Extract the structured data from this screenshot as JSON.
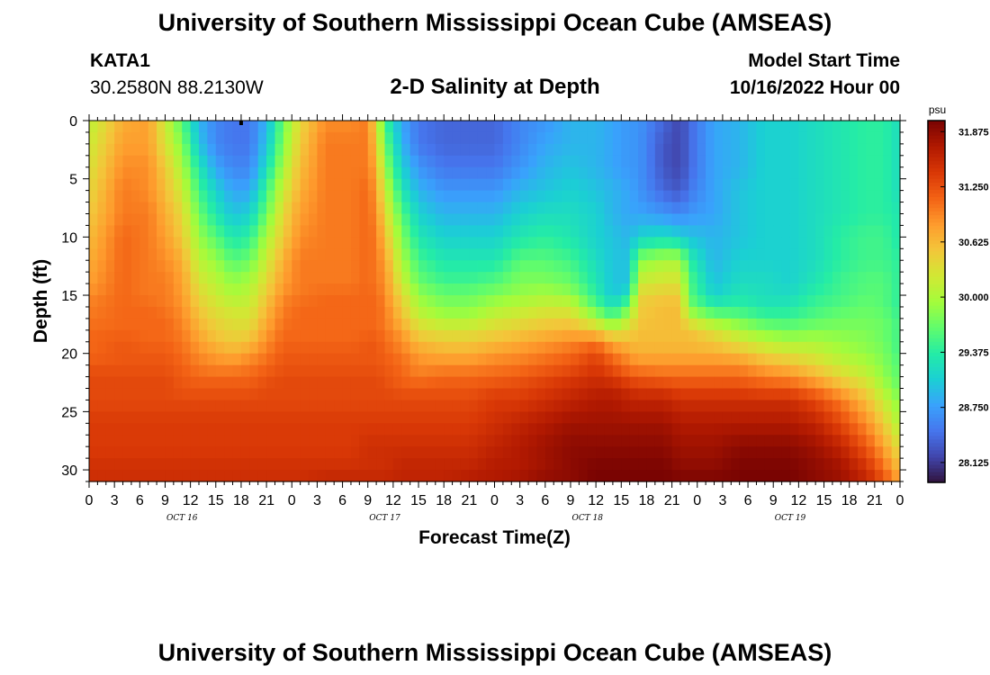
{
  "header": {
    "title": "University of Southern Mississippi Ocean Cube (AMSEAS)",
    "station": "KATA1",
    "coords": "30.2580N  88.2130W",
    "subtitle": "2-D Salinity at Depth",
    "model_start_label": "Model Start Time",
    "model_start_value": "10/16/2022 Hour 00"
  },
  "footer": {
    "title": "University of Southern Mississippi Ocean Cube (AMSEAS)"
  },
  "chart_data": {
    "type": "heatmap",
    "title": "2-D Salinity at Depth",
    "xlabel": "Forecast Time(Z)",
    "ylabel": "Depth (ft)",
    "x_unit": "hours from model start",
    "xlim": [
      0,
      96
    ],
    "ylim": [
      31,
      0
    ],
    "x_ticks": [
      0,
      3,
      6,
      9,
      12,
      15,
      18,
      21,
      24,
      27,
      30,
      33,
      36,
      39,
      42,
      45,
      48,
      51,
      54,
      57,
      60,
      63,
      66,
      69,
      72,
      75,
      78,
      81,
      84,
      87,
      90,
      93,
      96
    ],
    "x_tick_labels": [
      "0",
      "3",
      "6",
      "9",
      "12",
      "15",
      "18",
      "21",
      "0",
      "3",
      "6",
      "9",
      "12",
      "15",
      "18",
      "21",
      "0",
      "3",
      "6",
      "9",
      "12",
      "15",
      "18",
      "21",
      "0",
      "3",
      "6",
      "9",
      "12",
      "15",
      "18",
      "21",
      "0"
    ],
    "date_labels": [
      {
        "label": "OCT 16",
        "hour": 11
      },
      {
        "label": "OCT 17",
        "hour": 35
      },
      {
        "label": "OCT 18",
        "hour": 59
      },
      {
        "label": "OCT 19",
        "hour": 83
      }
    ],
    "y_ticks": [
      0,
      5,
      10,
      15,
      20,
      25,
      30
    ],
    "colorbar": {
      "unit": "psu",
      "min": 27.9,
      "max": 32.0,
      "tick_values": [
        28.125,
        28.75,
        29.375,
        30.0,
        30.625,
        31.25,
        31.875
      ],
      "tick_labels": [
        "28.125",
        "28.750",
        "29.375",
        "30.000",
        "30.625",
        "31.250",
        "31.875"
      ],
      "colormap": [
        "#30123b",
        "#4145ab",
        "#4675ed",
        "#39a2fc",
        "#1bcfd4",
        "#24eca6",
        "#61fc6c",
        "#a4fc3b",
        "#d1e834",
        "#f3c63a",
        "#fe9b2d",
        "#f36315",
        "#d93806",
        "#b11901",
        "#7a0402"
      ]
    },
    "grid_depths_ft": [
      0,
      2,
      4,
      6,
      8,
      10,
      12,
      14,
      15,
      16,
      17,
      18,
      19,
      20,
      21,
      22,
      23,
      24,
      26,
      28,
      30,
      31
    ],
    "time_columns": [
      {
        "hour": 0,
        "profile": [
          30.1,
          30.2,
          30.3,
          30.4,
          30.5,
          30.6,
          30.7,
          30.8,
          30.9,
          31.0,
          31.0,
          31.1,
          31.1,
          31.1,
          31.2,
          31.3,
          31.3,
          31.3,
          31.4,
          31.4,
          31.5,
          31.5
        ]
      },
      {
        "hour": 4,
        "profile": [
          30.7,
          30.8,
          30.9,
          31.0,
          31.0,
          31.1,
          31.1,
          31.1,
          31.1,
          31.1,
          31.1,
          31.1,
          31.2,
          31.2,
          31.2,
          31.3,
          31.3,
          31.3,
          31.4,
          31.4,
          31.5,
          31.5
        ]
      },
      {
        "hour": 7,
        "profile": [
          30.8,
          30.8,
          30.9,
          30.9,
          31.0,
          31.0,
          31.0,
          31.0,
          31.0,
          31.1,
          31.1,
          31.1,
          31.1,
          31.2,
          31.2,
          31.3,
          31.3,
          31.3,
          31.4,
          31.4,
          31.5,
          31.5
        ]
      },
      {
        "hour": 9,
        "profile": [
          30.2,
          30.3,
          30.5,
          30.6,
          30.7,
          30.8,
          30.9,
          31.0,
          31.0,
          31.0,
          31.1,
          31.1,
          31.1,
          31.2,
          31.2,
          31.3,
          31.3,
          31.3,
          31.4,
          31.4,
          31.5,
          31.5
        ]
      },
      {
        "hour": 11,
        "profile": [
          29.6,
          29.8,
          30.0,
          30.2,
          30.4,
          30.5,
          30.7,
          30.8,
          30.8,
          30.9,
          30.9,
          31.0,
          31.0,
          31.1,
          31.1,
          31.2,
          31.2,
          31.3,
          31.4,
          31.4,
          31.5,
          31.5
        ]
      },
      {
        "hour": 13,
        "profile": [
          28.9,
          29.0,
          29.3,
          29.5,
          29.7,
          29.9,
          30.1,
          30.3,
          30.4,
          30.5,
          30.6,
          30.7,
          30.8,
          30.9,
          31.0,
          31.1,
          31.2,
          31.3,
          31.4,
          31.4,
          31.5,
          31.5
        ]
      },
      {
        "hour": 15,
        "profile": [
          28.6,
          28.6,
          28.8,
          29.1,
          29.3,
          29.6,
          29.9,
          30.1,
          30.2,
          30.3,
          30.4,
          30.5,
          30.6,
          30.8,
          30.9,
          31.1,
          31.2,
          31.3,
          31.4,
          31.4,
          31.5,
          31.5
        ]
      },
      {
        "hour": 17,
        "profile": [
          28.5,
          28.5,
          28.6,
          28.8,
          29.0,
          29.3,
          29.6,
          29.9,
          30.0,
          30.2,
          30.3,
          30.4,
          30.5,
          30.7,
          30.9,
          31.1,
          31.2,
          31.3,
          31.4,
          31.4,
          31.5,
          31.5
        ]
      },
      {
        "hour": 19,
        "profile": [
          28.5,
          28.5,
          28.6,
          28.8,
          29.1,
          29.4,
          29.7,
          30.0,
          30.1,
          30.2,
          30.3,
          30.4,
          30.6,
          30.8,
          31.0,
          31.1,
          31.2,
          31.3,
          31.4,
          31.4,
          31.5,
          31.5
        ]
      },
      {
        "hour": 21,
        "profile": [
          28.9,
          29.0,
          29.2,
          29.5,
          29.7,
          30.0,
          30.2,
          30.4,
          30.5,
          30.6,
          30.7,
          30.8,
          30.9,
          31.0,
          31.1,
          31.2,
          31.3,
          31.3,
          31.4,
          31.4,
          31.5,
          31.5
        ]
      },
      {
        "hour": 23,
        "profile": [
          29.7,
          29.8,
          30.0,
          30.2,
          30.4,
          30.5,
          30.7,
          30.8,
          30.9,
          31.0,
          31.0,
          31.1,
          31.1,
          31.2,
          31.2,
          31.3,
          31.3,
          31.3,
          31.4,
          31.4,
          31.5,
          31.5
        ]
      },
      {
        "hour": 25,
        "profile": [
          30.4,
          30.5,
          30.6,
          30.7,
          30.8,
          30.9,
          31.0,
          31.0,
          31.0,
          31.1,
          31.1,
          31.1,
          31.1,
          31.2,
          31.2,
          31.3,
          31.3,
          31.3,
          31.4,
          31.4,
          31.5,
          31.5
        ]
      },
      {
        "hour": 28,
        "profile": [
          30.9,
          31.0,
          31.0,
          31.0,
          31.0,
          31.0,
          31.0,
          31.0,
          31.1,
          31.1,
          31.1,
          31.1,
          31.1,
          31.2,
          31.2,
          31.3,
          31.3,
          31.3,
          31.4,
          31.4,
          31.5,
          31.6
        ]
      },
      {
        "hour": 31,
        "profile": [
          30.9,
          31.0,
          31.0,
          31.0,
          31.0,
          31.0,
          31.0,
          31.0,
          31.1,
          31.1,
          31.1,
          31.1,
          31.1,
          31.2,
          31.2,
          31.3,
          31.3,
          31.3,
          31.4,
          31.4,
          31.5,
          31.6
        ]
      },
      {
        "hour": 33,
        "profile": [
          31.0,
          31.0,
          31.0,
          31.1,
          31.1,
          31.1,
          31.1,
          31.1,
          31.1,
          31.1,
          31.1,
          31.1,
          31.2,
          31.2,
          31.2,
          31.3,
          31.3,
          31.3,
          31.4,
          31.5,
          31.5,
          31.6
        ]
      },
      {
        "hour": 34,
        "profile": [
          30.3,
          30.5,
          30.7,
          30.8,
          30.9,
          31.0,
          31.0,
          31.0,
          31.1,
          31.1,
          31.1,
          31.1,
          31.2,
          31.2,
          31.2,
          31.3,
          31.3,
          31.3,
          31.4,
          31.5,
          31.5,
          31.6
        ]
      },
      {
        "hour": 35,
        "profile": [
          29.5,
          29.7,
          29.9,
          30.2,
          30.4,
          30.6,
          30.8,
          30.9,
          30.9,
          31.0,
          31.0,
          31.0,
          31.1,
          31.1,
          31.2,
          31.2,
          31.3,
          31.3,
          31.4,
          31.5,
          31.5,
          31.6
        ]
      },
      {
        "hour": 37,
        "profile": [
          28.8,
          28.9,
          29.1,
          29.3,
          29.6,
          29.8,
          30.0,
          30.2,
          30.4,
          30.5,
          30.6,
          30.8,
          30.9,
          31.0,
          31.1,
          31.1,
          31.2,
          31.3,
          31.4,
          31.5,
          31.6,
          31.6
        ]
      },
      {
        "hour": 39,
        "profile": [
          28.5,
          28.5,
          28.7,
          28.9,
          29.1,
          29.3,
          29.5,
          29.7,
          29.9,
          30.0,
          30.2,
          30.4,
          30.6,
          30.8,
          30.9,
          31.0,
          31.2,
          31.3,
          31.4,
          31.5,
          31.6,
          31.6
        ]
      },
      {
        "hour": 42,
        "profile": [
          28.4,
          28.4,
          28.5,
          28.7,
          28.9,
          29.1,
          29.3,
          29.5,
          29.7,
          29.8,
          30.0,
          30.3,
          30.5,
          30.7,
          30.9,
          31.1,
          31.2,
          31.3,
          31.4,
          31.5,
          31.6,
          31.6
        ]
      },
      {
        "hour": 45,
        "profile": [
          28.4,
          28.4,
          28.5,
          28.7,
          28.9,
          29.1,
          29.3,
          29.5,
          29.7,
          29.8,
          30.0,
          30.3,
          30.5,
          30.7,
          30.9,
          31.1,
          31.2,
          31.3,
          31.4,
          31.5,
          31.6,
          31.7
        ]
      },
      {
        "hour": 48,
        "profile": [
          28.4,
          28.4,
          28.5,
          28.7,
          28.9,
          29.1,
          29.3,
          29.6,
          29.8,
          30.0,
          30.2,
          30.4,
          30.6,
          30.8,
          31.0,
          31.1,
          31.3,
          31.4,
          31.5,
          31.6,
          31.7,
          31.7
        ]
      },
      {
        "hour": 51,
        "profile": [
          28.6,
          28.6,
          28.7,
          28.9,
          29.1,
          29.3,
          29.6,
          29.8,
          29.9,
          30.1,
          30.3,
          30.5,
          30.7,
          30.9,
          31.0,
          31.2,
          31.3,
          31.4,
          31.6,
          31.7,
          31.7,
          31.8
        ]
      },
      {
        "hour": 54,
        "profile": [
          28.7,
          28.8,
          28.9,
          29.0,
          29.2,
          29.4,
          29.6,
          29.8,
          30.0,
          30.2,
          30.4,
          30.6,
          30.8,
          31.0,
          31.1,
          31.3,
          31.4,
          31.5,
          31.7,
          31.8,
          31.8,
          31.9
        ]
      },
      {
        "hour": 57,
        "profile": [
          28.9,
          28.9,
          29.0,
          29.1,
          29.2,
          29.3,
          29.5,
          29.7,
          29.9,
          30.2,
          30.4,
          30.7,
          30.9,
          31.1,
          31.2,
          31.4,
          31.5,
          31.6,
          31.8,
          31.9,
          31.9,
          31.9
        ]
      },
      {
        "hour": 60,
        "profile": [
          28.9,
          28.9,
          28.9,
          29.0,
          29.1,
          29.1,
          29.2,
          29.3,
          29.4,
          29.6,
          30.0,
          30.5,
          31.0,
          31.3,
          31.4,
          31.5,
          31.6,
          31.7,
          31.8,
          31.9,
          32.0,
          32.0
        ]
      },
      {
        "hour": 62,
        "profile": [
          28.8,
          28.8,
          28.8,
          28.9,
          28.9,
          29.0,
          29.0,
          29.0,
          29.0,
          29.3,
          29.6,
          30.2,
          30.7,
          31.0,
          31.2,
          31.4,
          31.6,
          31.7,
          31.8,
          31.9,
          32.0,
          32.0
        ]
      },
      {
        "hour": 64,
        "profile": [
          28.7,
          28.7,
          28.7,
          28.8,
          28.8,
          28.9,
          29.0,
          29.0,
          29.3,
          29.7,
          30.1,
          30.4,
          30.6,
          30.8,
          31.0,
          31.2,
          31.5,
          31.6,
          31.8,
          31.9,
          32.0,
          32.0
        ]
      },
      {
        "hour": 65,
        "profile": [
          28.7,
          28.7,
          28.7,
          28.7,
          28.8,
          29.1,
          29.8,
          30.2,
          30.4,
          30.5,
          30.5,
          30.6,
          30.6,
          30.7,
          30.9,
          31.2,
          31.4,
          31.6,
          31.8,
          31.9,
          32.0,
          32.0
        ]
      },
      {
        "hour": 68,
        "profile": [
          28.4,
          28.3,
          28.3,
          28.4,
          28.7,
          29.2,
          30.0,
          30.3,
          30.5,
          30.6,
          30.6,
          30.6,
          30.6,
          30.7,
          30.9,
          31.1,
          31.4,
          31.6,
          31.8,
          31.9,
          32.0,
          32.0
        ]
      },
      {
        "hour": 70,
        "profile": [
          28.2,
          28.2,
          28.2,
          28.3,
          28.6,
          29.1,
          30.0,
          30.3,
          30.5,
          30.6,
          30.6,
          30.6,
          30.6,
          30.7,
          30.9,
          31.1,
          31.3,
          31.5,
          31.7,
          31.8,
          31.9,
          32.0
        ]
      },
      {
        "hour": 71,
        "profile": [
          28.4,
          28.4,
          28.4,
          28.5,
          28.7,
          29.0,
          29.4,
          29.6,
          29.6,
          29.8,
          30.1,
          30.6,
          30.6,
          30.7,
          30.9,
          31.1,
          31.3,
          31.5,
          31.7,
          31.8,
          31.9,
          32.0
        ]
      },
      {
        "hour": 74,
        "profile": [
          28.8,
          28.8,
          28.8,
          28.8,
          28.8,
          28.9,
          28.9,
          29.0,
          29.1,
          29.4,
          29.8,
          30.3,
          30.5,
          30.7,
          30.9,
          31.1,
          31.3,
          31.5,
          31.7,
          31.8,
          31.9,
          32.0
        ]
      },
      {
        "hour": 77,
        "profile": [
          28.9,
          28.9,
          28.9,
          29.0,
          29.0,
          29.0,
          29.1,
          29.2,
          29.3,
          29.4,
          29.7,
          30.0,
          30.3,
          30.6,
          30.9,
          31.1,
          31.3,
          31.5,
          31.7,
          31.9,
          32.0,
          32.0
        ]
      },
      {
        "hour": 80,
        "profile": [
          29.1,
          29.1,
          29.1,
          29.1,
          29.1,
          29.1,
          29.1,
          29.2,
          29.2,
          29.3,
          29.5,
          29.8,
          30.1,
          30.4,
          30.7,
          31.0,
          31.2,
          31.5,
          31.7,
          31.9,
          32.0,
          32.0
        ]
      },
      {
        "hour": 83,
        "profile": [
          29.1,
          29.1,
          29.1,
          29.1,
          29.1,
          29.1,
          29.1,
          29.1,
          29.2,
          29.3,
          29.5,
          29.7,
          30.0,
          30.3,
          30.6,
          30.9,
          31.2,
          31.5,
          31.7,
          31.9,
          32.0,
          32.0
        ]
      },
      {
        "hour": 86,
        "profile": [
          29.2,
          29.2,
          29.2,
          29.2,
          29.2,
          29.2,
          29.2,
          29.3,
          29.4,
          29.5,
          29.6,
          29.8,
          30.0,
          30.2,
          30.4,
          30.7,
          31.0,
          31.3,
          31.6,
          31.8,
          31.9,
          31.9
        ]
      },
      {
        "hour": 89,
        "profile": [
          29.3,
          29.3,
          29.3,
          29.3,
          29.3,
          29.4,
          29.4,
          29.5,
          29.5,
          29.6,
          29.7,
          29.8,
          29.9,
          30.0,
          30.2,
          30.4,
          30.7,
          31.0,
          31.3,
          31.6,
          31.8,
          31.8
        ]
      },
      {
        "hour": 92,
        "profile": [
          29.4,
          29.4,
          29.4,
          29.4,
          29.4,
          29.5,
          29.5,
          29.6,
          29.6,
          29.7,
          29.7,
          29.8,
          29.8,
          29.9,
          30.0,
          30.2,
          30.4,
          30.6,
          30.9,
          31.2,
          31.5,
          31.6
        ]
      },
      {
        "hour": 94,
        "profile": [
          29.4,
          29.4,
          29.4,
          29.4,
          29.4,
          29.5,
          29.5,
          29.6,
          29.6,
          29.6,
          29.7,
          29.7,
          29.7,
          29.8,
          29.8,
          29.9,
          30.0,
          30.2,
          30.5,
          30.8,
          31.1,
          31.3
        ]
      },
      {
        "hour": 96,
        "profile": [
          29.2,
          29.2,
          29.2,
          29.2,
          29.3,
          29.3,
          29.4,
          29.4,
          29.4,
          29.4,
          29.5,
          29.5,
          29.5,
          29.5,
          29.6,
          29.6,
          29.7,
          29.8,
          30.0,
          30.3,
          30.6,
          30.8
        ]
      }
    ]
  }
}
